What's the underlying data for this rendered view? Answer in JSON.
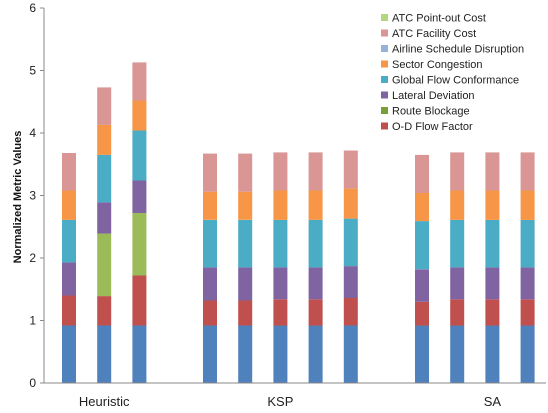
{
  "chart_data": {
    "type": "bar",
    "stacked": true,
    "ylabel": "Normalized Metric Values",
    "ylim": [
      0,
      6
    ],
    "yticks": [
      0,
      1,
      2,
      3,
      4,
      5,
      6
    ],
    "grid": false,
    "legend_position": "top-right",
    "groups": [
      {
        "label": "Heuristic",
        "bar_count": 3
      },
      {
        "label": "KSP",
        "bar_count": 5
      },
      {
        "label": "SA",
        "bar_count": 5
      }
    ],
    "series": [
      {
        "name": "O-D Flow Factor",
        "color": "#4F81BD",
        "values": [
          0.92,
          0.92,
          0.92,
          0.92,
          0.92,
          0.92,
          0.92,
          0.92,
          0.92,
          0.92,
          0.92,
          0.92,
          0.92
        ]
      },
      {
        "name": "Route Blockage",
        "color": "#C0504D",
        "values": [
          0.48,
          0.47,
          0.8,
          0.4,
          0.4,
          0.42,
          0.42,
          0.44,
          0.38,
          0.42,
          0.42,
          0.42,
          0.4
        ]
      },
      {
        "name": "Lateral Deviation",
        "color": "#9BBB59",
        "values": [
          0,
          1.0,
          1.0,
          0,
          0,
          0,
          0,
          0,
          0,
          0,
          0,
          0,
          0
        ]
      },
      {
        "name": "Global Flow Conformance",
        "color": "#8064A2",
        "values": [
          0.53,
          0.5,
          0.52,
          0.53,
          0.53,
          0.51,
          0.51,
          0.51,
          0.52,
          0.51,
          0.51,
          0.51,
          0.52
        ]
      },
      {
        "name": "Sector Congestion",
        "color": "#4BACC6",
        "values": [
          0.68,
          0.76,
          0.8,
          0.76,
          0.76,
          0.76,
          0.76,
          0.76,
          0.77,
          0.76,
          0.76,
          0.76,
          0.77
        ]
      },
      {
        "name": "Airline Schedule Disruption",
        "color": "#F79646",
        "values": [
          0.47,
          0.48,
          0.48,
          0.45,
          0.45,
          0.47,
          0.47,
          0.48,
          0.45,
          0.47,
          0.47,
          0.47,
          0.46
        ]
      },
      {
        "name": "ATC Facility Cost",
        "color": "#95B3D7",
        "values": [
          0,
          0,
          0,
          0,
          0,
          0,
          0,
          0,
          0,
          0,
          0,
          0,
          0
        ]
      },
      {
        "name": "ATC Point-out Cost",
        "color": "#D99694",
        "values": [
          0.6,
          0.6,
          0.61,
          0.61,
          0.61,
          0.61,
          0.61,
          0.61,
          0.61,
          0.61,
          0.61,
          0.61,
          0.61
        ]
      }
    ],
    "legend": [
      {
        "label": "ATC Point-out Cost",
        "color": "#B3D77E"
      },
      {
        "label": "ATC Facility Cost",
        "color": "#D99694"
      },
      {
        "label": "Airline Schedule Disruption",
        "color": "#95B3D7"
      },
      {
        "label": "Sector Congestion",
        "color": "#F79646"
      },
      {
        "label": "Global Flow Conformance",
        "color": "#4BACC6"
      },
      {
        "label": "Lateral Deviation",
        "color": "#8064A2"
      },
      {
        "label": "Route Blockage",
        "color": "#77A03A"
      },
      {
        "label": "O-D Flow Factor",
        "color": "#C0504D"
      }
    ]
  }
}
